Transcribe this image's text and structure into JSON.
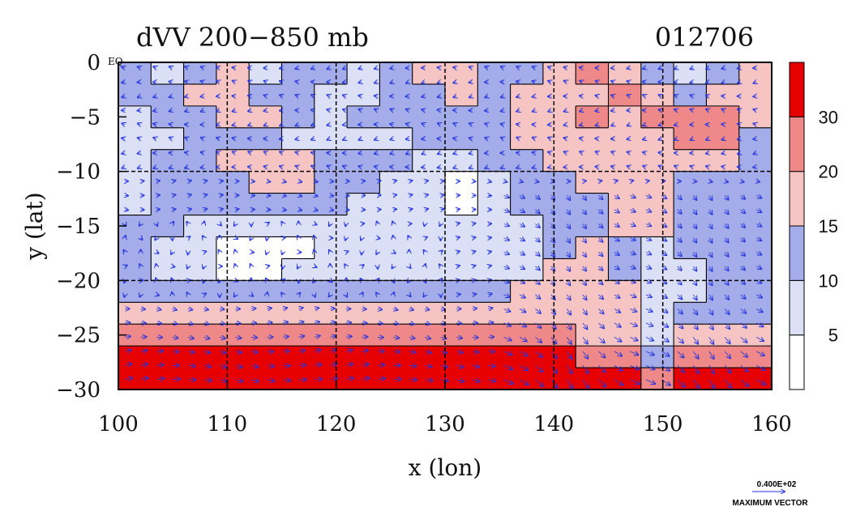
{
  "chart_data": {
    "type": "heatmap",
    "title": "dVV 200−850 mb",
    "date_label": "012706",
    "xlabel": "x (lon)",
    "ylabel": "y (lat)",
    "xlim": [
      100,
      160
    ],
    "ylim": [
      -30,
      0
    ],
    "x_ticks": [
      {
        "value": 100,
        "label": "100"
      },
      {
        "value": 110,
        "label": "110"
      },
      {
        "value": 120,
        "label": "120"
      },
      {
        "value": 130,
        "label": "130"
      },
      {
        "value": 140,
        "label": "140"
      },
      {
        "value": 150,
        "label": "150"
      },
      {
        "value": 160,
        "label": "160"
      }
    ],
    "y_ticks": [
      {
        "value": 0,
        "label": "0"
      },
      {
        "value": -5,
        "label": "−5"
      },
      {
        "value": -10,
        "label": "−10"
      },
      {
        "value": -15,
        "label": "−15"
      },
      {
        "value": -20,
        "label": "−20"
      },
      {
        "value": -25,
        "label": "−25"
      },
      {
        "value": -30,
        "label": "−30"
      }
    ],
    "corner_label": "EQ",
    "grid_lon": [
      110,
      120,
      130,
      140,
      150
    ],
    "grid_lat": [
      -10,
      -20
    ],
    "colorbar": {
      "levels": [
        5,
        10,
        15,
        20,
        30
      ],
      "labels": [
        "5",
        "10",
        "15",
        "20",
        "30"
      ],
      "colors": [
        "#ffffff",
        "#dce0f6",
        "#a4acea",
        "#f7c4c4",
        "#ef8888",
        "#e60000"
      ]
    },
    "field_rows": [
      {
        "lat": -1,
        "values": [
          2,
          1,
          2,
          3,
          1,
          2,
          2,
          1,
          2,
          3,
          3,
          2,
          2,
          3,
          4,
          3,
          2,
          1,
          2,
          3
        ]
      },
      {
        "lat": -3,
        "values": [
          2,
          2,
          3,
          3,
          2,
          2,
          1,
          1,
          2,
          2,
          3,
          2,
          3,
          3,
          3,
          4,
          3,
          2,
          3,
          3
        ]
      },
      {
        "lat": -5,
        "values": [
          1,
          2,
          2,
          3,
          3,
          2,
          1,
          2,
          2,
          2,
          2,
          2,
          3,
          3,
          4,
          3,
          4,
          4,
          4,
          3
        ]
      },
      {
        "lat": -7,
        "values": [
          1,
          1,
          2,
          2,
          2,
          1,
          1,
          1,
          1,
          2,
          2,
          2,
          3,
          3,
          3,
          3,
          3,
          4,
          4,
          2
        ]
      },
      {
        "lat": -9,
        "values": [
          1,
          2,
          2,
          3,
          3,
          3,
          2,
          2,
          2,
          1,
          1,
          2,
          2,
          3,
          3,
          3,
          3,
          3,
          3,
          2
        ]
      },
      {
        "lat": -11,
        "values": [
          1,
          2,
          2,
          2,
          3,
          3,
          2,
          2,
          1,
          1,
          0,
          1,
          2,
          2,
          3,
          3,
          3,
          2,
          2,
          2
        ]
      },
      {
        "lat": -13,
        "values": [
          1,
          2,
          2,
          2,
          2,
          2,
          2,
          1,
          1,
          1,
          0,
          1,
          2,
          2,
          2,
          3,
          3,
          2,
          2,
          2
        ]
      },
      {
        "lat": -15,
        "values": [
          2,
          2,
          1,
          1,
          1,
          1,
          1,
          1,
          1,
          1,
          1,
          1,
          1,
          2,
          2,
          3,
          3,
          2,
          2,
          2
        ]
      },
      {
        "lat": -17,
        "values": [
          2,
          1,
          1,
          0,
          0,
          0,
          1,
          1,
          1,
          1,
          1,
          1,
          1,
          2,
          3,
          2,
          1,
          2,
          2,
          2
        ]
      },
      {
        "lat": -19,
        "values": [
          2,
          1,
          1,
          0,
          0,
          1,
          1,
          1,
          1,
          1,
          1,
          1,
          1,
          3,
          3,
          2,
          1,
          1,
          2,
          2
        ]
      },
      {
        "lat": -21,
        "values": [
          2,
          2,
          2,
          2,
          2,
          2,
          2,
          2,
          2,
          2,
          2,
          2,
          3,
          3,
          3,
          3,
          1,
          1,
          2,
          2
        ]
      },
      {
        "lat": -23,
        "values": [
          3,
          3,
          3,
          3,
          3,
          3,
          3,
          3,
          3,
          3,
          3,
          3,
          3,
          3,
          3,
          3,
          1,
          2,
          2,
          2
        ]
      },
      {
        "lat": -25,
        "values": [
          4,
          4,
          4,
          4,
          4,
          4,
          4,
          4,
          4,
          4,
          4,
          4,
          4,
          4,
          3,
          3,
          1,
          3,
          3,
          3
        ]
      },
      {
        "lat": -27,
        "values": [
          5,
          5,
          5,
          5,
          5,
          5,
          5,
          5,
          5,
          5,
          5,
          5,
          5,
          5,
          4,
          4,
          2,
          4,
          4,
          4
        ]
      },
      {
        "lat": -29,
        "values": [
          5,
          5,
          5,
          5,
          5,
          5,
          5,
          5,
          5,
          5,
          5,
          5,
          5,
          5,
          5,
          5,
          4,
          5,
          5,
          5
        ]
      }
    ],
    "grid": true,
    "vectors": true,
    "legend_position": "right"
  },
  "vector_key": {
    "value": "0.400E+02",
    "label": "MAXIMUM VECTOR"
  }
}
